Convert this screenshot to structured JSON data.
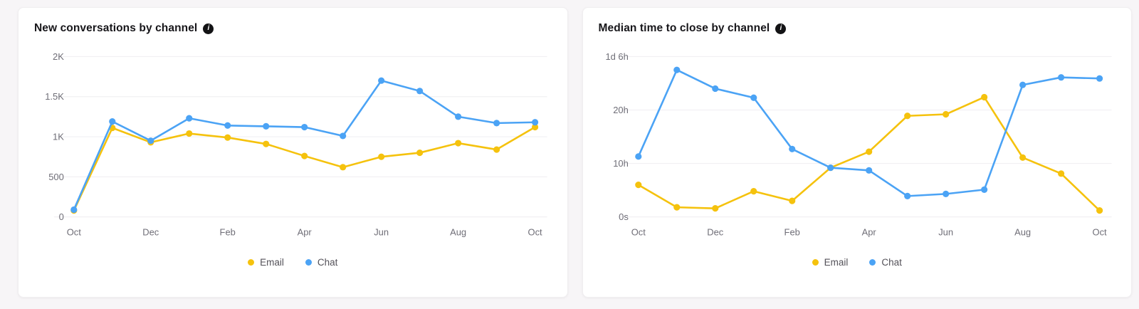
{
  "icons": {
    "info_glyph": "i"
  },
  "chart_data": [
    {
      "type": "line",
      "title": "New conversations by channel",
      "legend_position": "bottom",
      "grid": true,
      "y_max": 2000,
      "y_ticks": [
        {
          "value": 2000,
          "label": "2K"
        },
        {
          "value": 1500,
          "label": "1.5K"
        },
        {
          "value": 1000,
          "label": "1K"
        },
        {
          "value": 500,
          "label": "500"
        },
        {
          "value": 0,
          "label": "0"
        }
      ],
      "x_ticks": [
        {
          "index": 0,
          "label": "Oct"
        },
        {
          "index": 2,
          "label": "Dec"
        },
        {
          "index": 4,
          "label": "Feb"
        },
        {
          "index": 6,
          "label": "Apr"
        },
        {
          "index": 8,
          "label": "Jun"
        },
        {
          "index": 10,
          "label": "Aug"
        },
        {
          "index": 12,
          "label": "Oct"
        }
      ],
      "series": [
        {
          "name": "Email",
          "color": "#F5C20D",
          "values": [
            80,
            1110,
            930,
            1040,
            990,
            910,
            760,
            620,
            750,
            800,
            920,
            840,
            1120
          ]
        },
        {
          "name": "Chat",
          "color": "#4BA3F5",
          "values": [
            90,
            1190,
            950,
            1230,
            1140,
            1130,
            1120,
            1010,
            1700,
            1570,
            1250,
            1170,
            1180
          ]
        }
      ]
    },
    {
      "type": "line",
      "title": "Median time to close by channel",
      "legend_position": "bottom",
      "grid": true,
      "y_max": 30,
      "y_unit": "hours",
      "y_ticks": [
        {
          "value": 30,
          "label": "1d 6h"
        },
        {
          "value": 20,
          "label": "20h"
        },
        {
          "value": 10,
          "label": "10h"
        },
        {
          "value": 0,
          "label": "0s"
        }
      ],
      "x_ticks": [
        {
          "index": 0,
          "label": "Oct"
        },
        {
          "index": 2,
          "label": "Dec"
        },
        {
          "index": 4,
          "label": "Feb"
        },
        {
          "index": 6,
          "label": "Apr"
        },
        {
          "index": 8,
          "label": "Jun"
        },
        {
          "index": 10,
          "label": "Aug"
        },
        {
          "index": 12,
          "label": "Oct"
        }
      ],
      "series": [
        {
          "name": "Email",
          "color": "#F5C20D",
          "values": [
            6,
            1.8,
            1.6,
            4.8,
            3,
            9.2,
            12.2,
            18.9,
            19.2,
            22.4,
            11.1,
            8.1,
            1.2
          ]
        },
        {
          "name": "Chat",
          "color": "#4BA3F5",
          "values": [
            11.3,
            27.5,
            24,
            22.3,
            12.7,
            9.2,
            8.7,
            3.9,
            4.3,
            5.1,
            24.7,
            26.1,
            25.9
          ]
        }
      ]
    }
  ]
}
